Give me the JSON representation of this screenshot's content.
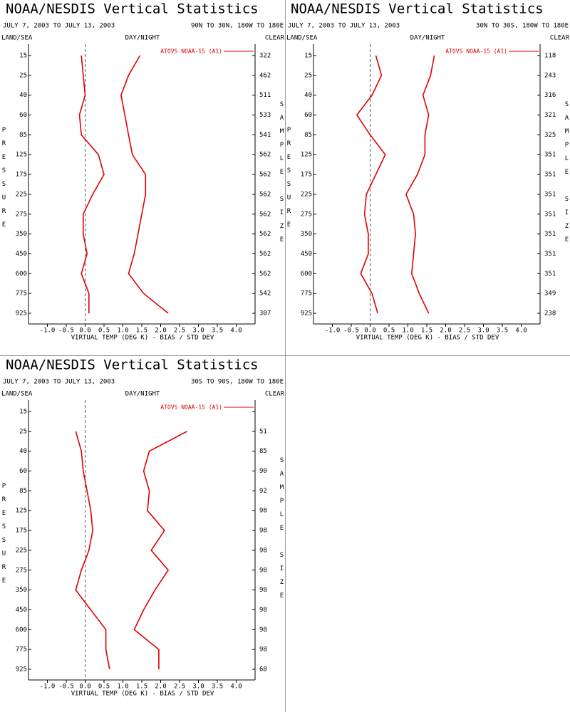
{
  "chart_data": [
    {
      "type": "line",
      "title": "NOAA/NESDIS Vertical Statistics",
      "subtitle": "JULY 7, 2003 TO JULY 13, 2003",
      "region": "90N TO 30N, 180W TO 180E",
      "left_label": "LAND/SEA",
      "center_label": "DAY/NIGHT",
      "right_label": "CLEAR",
      "y_label": "PRESSURE",
      "y2_label": "SAMPLE SIZE",
      "x_label": "VIRTUAL TEMP (DEG K) - BIAS / STD DEV",
      "categories": [
        15,
        25,
        40,
        60,
        85,
        125,
        175,
        225,
        275,
        350,
        450,
        600,
        775,
        925
      ],
      "sample_sizes": [
        322,
        462,
        511,
        533,
        541,
        562,
        562,
        562,
        562,
        562,
        562,
        562,
        542,
        307
      ],
      "series": [
        {
          "name": "ATOVS NOAA-15 (A1)",
          "color": "#e00000",
          "values": [
            -0.1,
            -0.05,
            0.0,
            -0.15,
            -0.1,
            0.35,
            0.5,
            0.2,
            -0.05,
            -0.05,
            0.05,
            -0.1,
            0.1,
            0.1
          ]
        },
        {
          "color": "#e00000",
          "values": [
            1.45,
            1.15,
            0.95,
            1.05,
            1.15,
            1.25,
            1.6,
            1.6,
            1.5,
            1.4,
            1.3,
            1.15,
            1.55,
            2.2
          ]
        }
      ],
      "xlim": [
        -1.5,
        4.5
      ],
      "xticks": [
        {
          "value": -1,
          "label": "-1.0"
        },
        -0.5,
        {
          "value": 0,
          "label": "0.0"
        },
        0.5,
        {
          "value": 1,
          "label": "1.0"
        },
        1.5,
        {
          "value": 2,
          "label": "2.0"
        },
        2.5,
        {
          "value": 3,
          "label": "3.0"
        },
        3.5,
        {
          "value": 4,
          "label": "4.0"
        }
      ]
    },
    {
      "type": "line",
      "title": "NOAA/NESDIS Vertical Statistics",
      "subtitle": "JULY 7, 2003 TO JULY 13, 2003",
      "region": "30N TO 30S, 180W TO 180E",
      "left_label": "LAND/SEA",
      "center_label": "DAY/NIGHT",
      "right_label": "CLEAR",
      "y_label": "PRESSURE",
      "y2_label": "SAMPLE SIZE",
      "x_label": "VIRTUAL TEMP (DEG K) - BIAS / STD DEV",
      "categories": [
        15,
        25,
        40,
        60,
        85,
        125,
        175,
        225,
        275,
        350,
        450,
        600,
        775,
        925
      ],
      "sample_sizes": [
        118,
        243,
        316,
        321,
        325,
        351,
        351,
        351,
        351,
        351,
        351,
        351,
        349,
        238
      ],
      "series": [
        {
          "name": "ATOVS NOAA-15 (A1)",
          "color": "#e00000",
          "values": [
            0.15,
            0.3,
            0.05,
            -0.35,
            0.0,
            0.4,
            0.15,
            -0.1,
            -0.15,
            -0.05,
            -0.05,
            -0.25,
            0.05,
            0.2
          ]
        },
        {
          "color": "#e00000",
          "values": [
            1.7,
            1.6,
            1.4,
            1.55,
            1.45,
            1.45,
            1.25,
            0.95,
            1.15,
            1.2,
            1.15,
            1.1,
            1.3,
            1.55
          ]
        }
      ],
      "xlim": [
        -1.5,
        4.5
      ],
      "xticks": [
        {
          "value": -1,
          "label": "-1.0"
        },
        -0.5,
        {
          "value": 0,
          "label": "0.0"
        },
        0.5,
        {
          "value": 1,
          "label": "1.0"
        },
        1.5,
        {
          "value": 2,
          "label": "2.0"
        },
        2.5,
        {
          "value": 3,
          "label": "3.0"
        },
        3.5,
        {
          "value": 4,
          "label": "4.0"
        }
      ]
    },
    {
      "type": "line",
      "title": "NOAA/NESDIS Vertical Statistics",
      "subtitle": "JULY 7, 2003 TO JULY 13, 2003",
      "region": "30S TO 90S, 180W TO 180E",
      "left_label": "LAND/SEA",
      "center_label": "DAY/NIGHT",
      "right_label": "CLEAR",
      "y_label": "PRESSURE",
      "y2_label": "SAMPLE SIZE",
      "x_label": "VIRTUAL TEMP (DEG K) - BIAS / STD DEV",
      "categories": [
        15,
        25,
        40,
        60,
        85,
        125,
        175,
        225,
        275,
        350,
        450,
        600,
        775,
        925
      ],
      "sample_sizes": [
        null,
        51,
        85,
        90,
        92,
        98,
        98,
        98,
        98,
        98,
        98,
        98,
        98,
        68
      ],
      "series": [
        {
          "name": "ATOVS NOAA-15 (A1)",
          "color": "#e00000",
          "values": [
            null,
            -0.25,
            -0.1,
            -0.05,
            0.05,
            0.15,
            0.2,
            0.1,
            -0.1,
            -0.25,
            0.15,
            0.55,
            0.55,
            0.65
          ]
        },
        {
          "color": "#e00000",
          "values": [
            null,
            2.7,
            1.7,
            1.55,
            1.7,
            1.65,
            2.1,
            1.75,
            2.2,
            1.85,
            1.55,
            1.3,
            1.95,
            1.95
          ]
        }
      ],
      "xlim": [
        -1.5,
        4.5
      ],
      "xticks": [
        {
          "value": -1,
          "label": "-1.0"
        },
        -0.5,
        {
          "value": 0,
          "label": "0.0"
        },
        0.5,
        {
          "value": 1,
          "label": "1.0"
        },
        1.5,
        {
          "value": 2,
          "label": "2.0"
        },
        2.5,
        {
          "value": 3,
          "label": "3.0"
        },
        3.5,
        {
          "value": 4,
          "label": "4.0"
        }
      ]
    }
  ]
}
